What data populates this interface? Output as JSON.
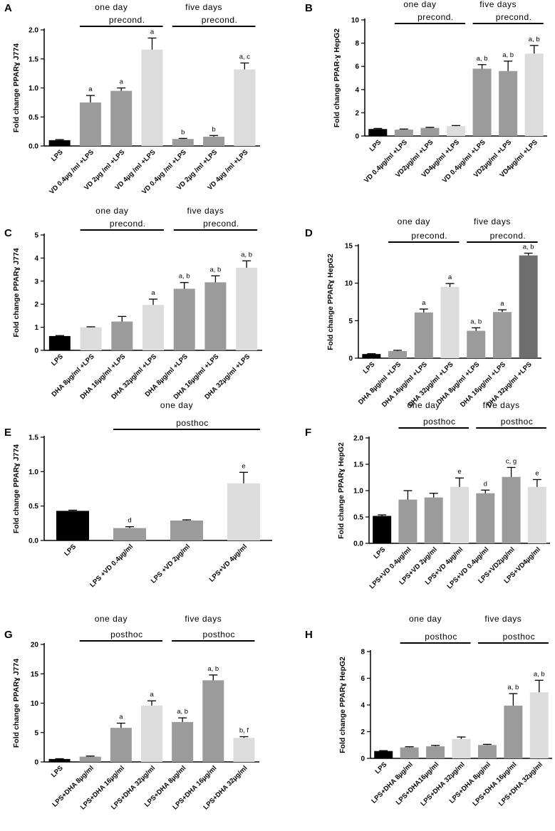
{
  "colors": {
    "black": "#000000",
    "dark_gray": "#6e6e6e",
    "mid_gray": "#9b9b9b",
    "light_gray": "#dcdcdc"
  },
  "chart_data": [
    {
      "type": "bar",
      "panel_label": "A",
      "ylabel": "Fold change PPARɣ J774",
      "ylim": [
        0,
        2.0
      ],
      "yticks": [
        "0.0",
        "0.5",
        "1.0",
        "1.5",
        "2.0"
      ],
      "ytick_values": [
        0,
        0.5,
        1.0,
        1.5,
        2.0
      ],
      "categories": [
        "LPS",
        "VD 0.4µg /ml +LPS",
        "VD 2µg /ml +LPS",
        "VD 4µg /ml +LPS",
        "VD 0.4µg /ml +LPS",
        "VD 2µg /ml +LPS",
        "VD 4µg /ml +LPS"
      ],
      "values": [
        0.1,
        0.75,
        0.95,
        1.66,
        0.12,
        0.16,
        1.32
      ],
      "errors": [
        0.01,
        0.12,
        0.05,
        0.2,
        0.01,
        0.02,
        0.11
      ],
      "colors": [
        "black",
        "mid_gray",
        "mid_gray",
        "light_gray",
        "mid_gray",
        "mid_gray",
        "light_gray"
      ],
      "annotations": [
        "",
        "a",
        "a",
        "a",
        "b",
        "b",
        "a, c"
      ],
      "groups": [
        {
          "line1": "one day",
          "line2": "precond.",
          "from": 1,
          "to": 3
        },
        {
          "line1": "five days",
          "line2": "precond.",
          "from": 4,
          "to": 6
        }
      ]
    },
    {
      "type": "bar",
      "panel_label": "B",
      "ylabel": "Fold change PPAR-ɣ HepG2",
      "ylim": [
        0,
        10
      ],
      "yticks": [
        "0",
        "2",
        "4",
        "6",
        "8",
        "10"
      ],
      "ytick_values": [
        0,
        2,
        4,
        6,
        8,
        10
      ],
      "categories": [
        "LPS",
        "VD 0.4µg/ml +LPS",
        "VD2µg/ml +LPS",
        "VD4µg/ml +LPS",
        "VD 0.4µg/ml +LPS",
        "VD2µg/ml +LPS",
        "VD4µg/ml +LPS"
      ],
      "values": [
        0.6,
        0.55,
        0.7,
        0.85,
        5.8,
        5.6,
        7.1
      ],
      "errors": [
        0.05,
        0.05,
        0.05,
        0.05,
        0.35,
        0.85,
        0.7
      ],
      "colors": [
        "black",
        "mid_gray",
        "mid_gray",
        "light_gray",
        "mid_gray",
        "mid_gray",
        "light_gray"
      ],
      "annotations": [
        "",
        "",
        "",
        "",
        "a, b",
        "a, b",
        "a, b"
      ],
      "groups": [
        {
          "line1": "one day",
          "line2": "precond.",
          "from": 1,
          "to": 3
        },
        {
          "line1": "five days",
          "line2": "precond.",
          "from": 4,
          "to": 6
        }
      ]
    },
    {
      "type": "bar",
      "panel_label": "C",
      "ylabel": "Fold change PPARɣ J774",
      "ylim": [
        0,
        5
      ],
      "yticks": [
        "0",
        "1",
        "2",
        "3",
        "4",
        "5"
      ],
      "ytick_values": [
        0,
        1,
        2,
        3,
        4,
        5
      ],
      "categories": [
        "LPS",
        "DHA 8µg/ml +LPS",
        "DHA 16µg/ml +LPS",
        "DHA 32µg/ml +LPS",
        "DHA 8µg/ml +LPS",
        "DHA 16µg/ml +LPS",
        "DHA 32µg/ml +LPS"
      ],
      "values": [
        0.62,
        1.0,
        1.25,
        1.97,
        2.67,
        2.95,
        3.58
      ],
      "errors": [
        0.02,
        0.02,
        0.22,
        0.25,
        0.27,
        0.28,
        0.3
      ],
      "colors": [
        "black",
        "light_gray",
        "mid_gray",
        "light_gray",
        "mid_gray",
        "mid_gray",
        "light_gray"
      ],
      "annotations": [
        "",
        "",
        "",
        "a",
        "a, b",
        "a, b",
        "a, b"
      ],
      "groups": [
        {
          "line1": "one day",
          "line2": "precond.",
          "from": 1,
          "to": 3
        },
        {
          "line1": "five days",
          "line2": "precond.",
          "from": 4,
          "to": 6
        }
      ]
    },
    {
      "type": "bar",
      "panel_label": "D",
      "ylabel": "Fold change PPARɣ HepG2",
      "ylim": [
        0,
        15
      ],
      "yticks": [
        "0",
        "5",
        "10",
        "15"
      ],
      "ytick_values": [
        0,
        5,
        10,
        15
      ],
      "categories": [
        "LPS",
        "DHA 8µg/ml +LPS",
        "DHA 16µg/ml +LPS",
        "DHA 32µg/ml +LPS",
        "DHA 8µg/ml +LPS",
        "DHA 16µg/ml +LPS",
        "DHA 32µg/ml +LPS"
      ],
      "values": [
        0.55,
        0.95,
        6.1,
        9.5,
        3.65,
        6.15,
        13.7
      ],
      "errors": [
        0.05,
        0.1,
        0.45,
        0.45,
        0.4,
        0.3,
        0.3
      ],
      "colors": [
        "black",
        "mid_gray",
        "mid_gray",
        "light_gray",
        "mid_gray",
        "mid_gray",
        "dark_gray"
      ],
      "annotations": [
        "",
        "",
        "a",
        "a",
        "a, b",
        "a",
        "a, b"
      ],
      "groups": [
        {
          "line1": "one day",
          "line2": "precond.",
          "from": 1,
          "to": 3
        },
        {
          "line1": "five days",
          "line2": "precond.",
          "from": 4,
          "to": 6
        }
      ]
    },
    {
      "type": "bar",
      "panel_label": "E",
      "ylabel": "Fold change PPARɣ J774",
      "ylim": [
        0,
        1.5
      ],
      "yticks": [
        "0.0",
        "0.5",
        "1.0",
        "1.5"
      ],
      "ytick_values": [
        0,
        0.5,
        1.0,
        1.5
      ],
      "categories": [
        "LPS",
        "LPS +VD 0.4µg/ml",
        "LPS +VD 2µg/ml",
        "LPS+VD 4µg/ml"
      ],
      "values": [
        0.43,
        0.18,
        0.29,
        0.83
      ],
      "errors": [
        0.01,
        0.02,
        0.01,
        0.16
      ],
      "colors": [
        "black",
        "mid_gray",
        "mid_gray",
        "light_gray"
      ],
      "annotations": [
        "",
        "d",
        "",
        "e"
      ],
      "groups": [
        {
          "line1": "one day",
          "line2": "posthoc",
          "from": 1,
          "to": 3
        }
      ]
    },
    {
      "type": "bar",
      "panel_label": "F",
      "ylabel": "Fold change PPARɣ HepG2",
      "ylim": [
        0,
        2.0
      ],
      "yticks": [
        "0.0",
        "0.5",
        "1.0",
        "1.5",
        "2.0"
      ],
      "ytick_values": [
        0,
        0.5,
        1.0,
        1.5,
        2.0
      ],
      "categories": [
        "LPS",
        "LPS+VD 0.4µg/ml",
        "LPS+VD 2µg/ml",
        "LPS+VD 4µg/ml",
        "LPS+VD 0.4µg/ml",
        "LPS+VD2µg/ml",
        "LPS+VD4µg/ml"
      ],
      "values": [
        0.52,
        0.83,
        0.87,
        1.07,
        0.95,
        1.26,
        1.07
      ],
      "errors": [
        0.02,
        0.17,
        0.08,
        0.17,
        0.06,
        0.18,
        0.14
      ],
      "colors": [
        "black",
        "mid_gray",
        "mid_gray",
        "light_gray",
        "mid_gray",
        "mid_gray",
        "light_gray"
      ],
      "annotations": [
        "",
        "",
        "",
        "e",
        "d",
        "c, g",
        "e"
      ],
      "groups": [
        {
          "line1": "one day",
          "line2": "posthoc",
          "from": 1,
          "to": 3
        },
        {
          "line1": "five days",
          "line2": "posthoc",
          "from": 4,
          "to": 6
        }
      ]
    },
    {
      "type": "bar",
      "panel_label": "G",
      "ylabel": "Fold change PPARɣ J774",
      "ylim": [
        0,
        20
      ],
      "yticks": [
        "0",
        "5",
        "10",
        "15",
        "20"
      ],
      "ytick_values": [
        0,
        5,
        10,
        15,
        20
      ],
      "categories": [
        "LPS",
        "LPS+DHA 8µg/ml",
        "LPS+DHA 16µg/ml",
        "LPS+DHA 32µg/ml",
        "LPS+DHA 8µg/ml",
        "LPS+DHA 16µg/ml",
        "LPS+DHA 32µg/ml"
      ],
      "values": [
        0.5,
        0.9,
        5.8,
        9.6,
        6.8,
        13.9,
        4.1
      ],
      "errors": [
        0.05,
        0.1,
        0.8,
        0.8,
        0.7,
        0.9,
        0.2
      ],
      "colors": [
        "black",
        "mid_gray",
        "mid_gray",
        "light_gray",
        "mid_gray",
        "mid_gray",
        "light_gray"
      ],
      "annotations": [
        "",
        "",
        "a",
        "a",
        "a, b",
        "a, b",
        "b, f"
      ],
      "groups": [
        {
          "line1": "one day",
          "line2": "posthoc",
          "from": 1,
          "to": 3
        },
        {
          "line1": "five days",
          "line2": "posthoc",
          "from": 4,
          "to": 6
        }
      ]
    },
    {
      "type": "bar",
      "panel_label": "H",
      "ylabel": "Fold change PPARɣ HepG2",
      "ylim": [
        0,
        8
      ],
      "yticks": [
        "0",
        "2",
        "4",
        "6",
        "8"
      ],
      "ytick_values": [
        0,
        2,
        4,
        6,
        8
      ],
      "categories": [
        "LPS",
        "LPS+DHA 8µg/ml",
        "LPS+DHA16µg/ml",
        "LPS+DHA 32µg/ml",
        "LPS+DHA 8µg/ml",
        "LPS+DHA 16µg/ml",
        "LPS+DHA 32µg/ml"
      ],
      "values": [
        0.55,
        0.82,
        0.9,
        1.45,
        1.0,
        3.95,
        4.95
      ],
      "errors": [
        0.03,
        0.05,
        0.07,
        0.15,
        0.05,
        0.9,
        0.9
      ],
      "colors": [
        "black",
        "mid_gray",
        "mid_gray",
        "light_gray",
        "mid_gray",
        "mid_gray",
        "light_gray"
      ],
      "annotations": [
        "",
        "",
        "",
        "",
        "",
        "a, b",
        "a, b"
      ],
      "groups": [
        {
          "line1": "one day",
          "line2": "posthoc",
          "from": 1,
          "to": 3
        },
        {
          "line1": "five days",
          "line2": "posthoc",
          "from": 4,
          "to": 6
        }
      ]
    }
  ]
}
